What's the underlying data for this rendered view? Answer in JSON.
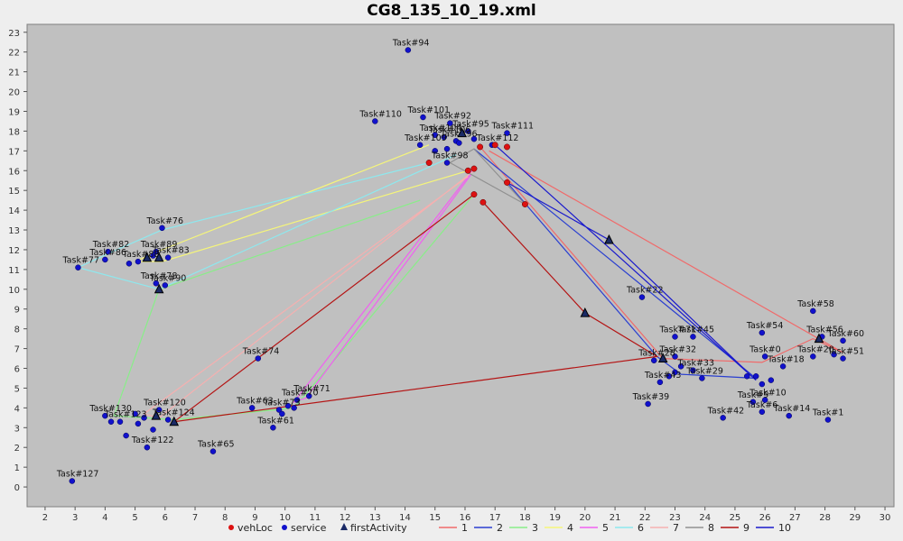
{
  "chart_data": {
    "type": "scatter",
    "title": "CG8_135_10_19.xml",
    "xlabel": "",
    "ylabel": "",
    "xlim": [
      1.4,
      30.3
    ],
    "ylim": [
      -1.0,
      23.4
    ],
    "xticks": [
      2,
      3,
      4,
      5,
      6,
      7,
      8,
      9,
      10,
      11,
      12,
      13,
      14,
      15,
      16,
      17,
      18,
      19,
      20,
      21,
      22,
      23,
      24,
      25,
      26,
      27,
      28,
      29,
      30
    ],
    "yticks": [
      0,
      1,
      2,
      3,
      4,
      5,
      6,
      7,
      8,
      9,
      10,
      11,
      12,
      13,
      14,
      15,
      16,
      17,
      18,
      19,
      20,
      21,
      22,
      23
    ],
    "grid": false,
    "legend_position": "bottom",
    "legend": [
      {
        "label": "vehLoc",
        "kind": "circle",
        "color": "#dd1111"
      },
      {
        "label": "service",
        "kind": "circle",
        "color": "#1111cc"
      },
      {
        "label": "firstActivity",
        "kind": "triangle",
        "color": "#1a2a66"
      },
      {
        "label": "1",
        "kind": "line",
        "color": "#f06a6a"
      },
      {
        "label": "2",
        "kind": "line",
        "color": "#2a3fd0"
      },
      {
        "label": "3",
        "kind": "line",
        "color": "#88ee88"
      },
      {
        "label": "4",
        "kind": "line",
        "color": "#f5f57a"
      },
      {
        "label": "5",
        "kind": "line",
        "color": "#f060f0"
      },
      {
        "label": "6",
        "kind": "line",
        "color": "#8ee8ee"
      },
      {
        "label": "7",
        "kind": "line",
        "color": "#f5b0b0"
      },
      {
        "label": "8",
        "kind": "line",
        "color": "#909090"
      },
      {
        "label": "9",
        "kind": "line",
        "color": "#b41414"
      },
      {
        "label": "10",
        "kind": "line",
        "color": "#1a1acc"
      }
    ],
    "vehLoc": [
      [
        14.8,
        16.4
      ],
      [
        16.1,
        16.0
      ],
      [
        16.3,
        16.1
      ],
      [
        16.5,
        17.2
      ],
      [
        17.0,
        17.3
      ],
      [
        17.4,
        17.2
      ],
      [
        17.4,
        15.4
      ],
      [
        18.0,
        14.3
      ],
      [
        16.3,
        14.8
      ],
      [
        16.6,
        14.4
      ]
    ],
    "firstActivity": [
      [
        5.8,
        10.0
      ],
      [
        6.3,
        3.3
      ],
      [
        5.7,
        3.6
      ],
      [
        20.8,
        12.5
      ],
      [
        20.0,
        8.8
      ],
      [
        27.8,
        7.5
      ],
      [
        5.8,
        11.6
      ],
      [
        5.4,
        11.6
      ],
      [
        15.9,
        17.9
      ],
      [
        22.6,
        6.5
      ]
    ],
    "service": [
      {
        "label": "Task#94",
        "x": 14.1,
        "y": 22.1
      },
      {
        "label": "Task#110",
        "x": 13.0,
        "y": 18.5
      },
      {
        "label": "Task#101",
        "x": 14.6,
        "y": 18.7
      },
      {
        "label": "Task#92",
        "x": 15.5,
        "y": 18.4
      },
      {
        "label": "Task#111",
        "x": 17.4,
        "y": 17.9
      },
      {
        "label": "Task#104",
        "x": 15.0,
        "y": 17.8
      },
      {
        "label": "Task#112",
        "x": 16.9,
        "y": 17.3
      },
      {
        "label": "Task#106",
        "x": 15.3,
        "y": 17.7
      },
      {
        "label": "Task#95",
        "x": 16.1,
        "y": 18.0
      },
      {
        "label": "Task#96",
        "x": 15.7,
        "y": 17.5
      },
      {
        "label": "Task#109",
        "x": 14.5,
        "y": 17.3
      },
      {
        "label": "Task#98",
        "x": 15.4,
        "y": 16.4
      },
      {
        "x": 15.0,
        "y": 17.0
      },
      {
        "x": 15.4,
        "y": 17.1
      },
      {
        "x": 15.8,
        "y": 17.4
      },
      {
        "x": 16.3,
        "y": 17.6
      },
      {
        "label": "Task#76",
        "x": 5.9,
        "y": 13.1
      },
      {
        "label": "Task#82",
        "x": 4.1,
        "y": 11.9
      },
      {
        "label": "Task#89",
        "x": 5.7,
        "y": 11.9
      },
      {
        "label": "Task#86",
        "x": 4.0,
        "y": 11.5
      },
      {
        "label": "Task#83",
        "x": 6.1,
        "y": 11.6
      },
      {
        "label": "Task#77",
        "x": 3.1,
        "y": 11.1
      },
      {
        "label": "Task#88",
        "x": 5.1,
        "y": 11.4
      },
      {
        "x": 5.6,
        "y": 11.7
      },
      {
        "x": 4.8,
        "y": 11.3
      },
      {
        "label": "Task#78",
        "x": 5.7,
        "y": 10.3
      },
      {
        "label": "Task#90",
        "x": 6.0,
        "y": 10.2
      },
      {
        "label": "Task#74",
        "x": 9.1,
        "y": 6.5
      },
      {
        "label": "Task#71",
        "x": 10.8,
        "y": 4.6
      },
      {
        "label": "Task#70",
        "x": 10.4,
        "y": 4.4
      },
      {
        "label": "Task#73",
        "x": 9.8,
        "y": 3.9
      },
      {
        "label": "Task#63",
        "x": 8.9,
        "y": 4.0
      },
      {
        "label": "Task#61",
        "x": 9.6,
        "y": 3.0
      },
      {
        "x": 10.1,
        "y": 4.1
      },
      {
        "x": 9.9,
        "y": 3.7
      },
      {
        "x": 10.3,
        "y": 4.0
      },
      {
        "label": "Task#130",
        "x": 4.0,
        "y": 3.6
      },
      {
        "label": "Task#120",
        "x": 5.8,
        "y": 3.9
      },
      {
        "label": "Task#124",
        "x": 6.1,
        "y": 3.4
      },
      {
        "label": "Task#123",
        "x": 4.5,
        "y": 3.3
      },
      {
        "label": "Task#122",
        "x": 5.4,
        "y": 2.0
      },
      {
        "label": "Task#127",
        "x": 2.9,
        "y": 0.3
      },
      {
        "label": "Task#65",
        "x": 7.6,
        "y": 1.8
      },
      {
        "x": 4.7,
        "y": 2.6
      },
      {
        "x": 5.1,
        "y": 3.2
      },
      {
        "x": 5.6,
        "y": 2.9
      },
      {
        "x": 4.2,
        "y": 3.3
      },
      {
        "x": 5.0,
        "y": 3.7
      },
      {
        "x": 5.3,
        "y": 3.5
      },
      {
        "label": "Task#58",
        "x": 27.6,
        "y": 8.9
      },
      {
        "label": "Task#54",
        "x": 25.9,
        "y": 7.8
      },
      {
        "label": "Task#56",
        "x": 27.9,
        "y": 7.6
      },
      {
        "label": "Task#60",
        "x": 28.6,
        "y": 7.4
      },
      {
        "label": "Task#51",
        "x": 28.6,
        "y": 6.5
      },
      {
        "label": "Task#0",
        "x": 26.0,
        "y": 6.6
      },
      {
        "label": "Task#18",
        "x": 26.6,
        "y": 6.1
      },
      {
        "label": "Task#20",
        "x": 27.6,
        "y": 6.6
      },
      {
        "label": "Task#10",
        "x": 26.0,
        "y": 4.4
      },
      {
        "label": "Task#9",
        "x": 25.6,
        "y": 4.3
      },
      {
        "label": "Task#6",
        "x": 25.9,
        "y": 3.8
      },
      {
        "label": "Task#14",
        "x": 26.8,
        "y": 3.6
      },
      {
        "label": "Task#1",
        "x": 28.1,
        "y": 3.4
      },
      {
        "x": 25.7,
        "y": 5.6
      },
      {
        "x": 25.9,
        "y": 5.2
      },
      {
        "x": 26.2,
        "y": 5.4
      },
      {
        "x": 28.3,
        "y": 6.7
      },
      {
        "label": "Task#22",
        "x": 21.9,
        "y": 9.6
      },
      {
        "label": "Task#45",
        "x": 23.6,
        "y": 7.6
      },
      {
        "label": "Task#71",
        "x": 23.0,
        "y": 7.6
      },
      {
        "label": "Task#32",
        "x": 23.0,
        "y": 6.6
      },
      {
        "label": "Task#28",
        "x": 22.3,
        "y": 6.4
      },
      {
        "label": "Task#33",
        "x": 23.6,
        "y": 5.9
      },
      {
        "label": "Task#29",
        "x": 23.9,
        "y": 5.5
      },
      {
        "label": "Task#43",
        "x": 22.5,
        "y": 5.3
      },
      {
        "label": "Task#39",
        "x": 22.1,
        "y": 4.2
      },
      {
        "label": "Task#42",
        "x": 24.6,
        "y": 3.5
      },
      {
        "x": 22.8,
        "y": 5.6
      },
      {
        "x": 23.2,
        "y": 6.1
      },
      {
        "x": 23.0,
        "y": 5.8
      },
      {
        "x": 25.4,
        "y": 5.6
      }
    ],
    "series": [
      {
        "name": "1",
        "color": "#f06a6a",
        "points": [
          [
            16.5,
            17.2
          ],
          [
            22.6,
            6.5
          ],
          [
            25.9,
            6.3
          ],
          [
            27.6,
            7.5
          ],
          [
            28.6,
            6.8
          ],
          [
            16.8,
            17.0
          ]
        ]
      },
      {
        "name": "2",
        "color": "#2a3fd0",
        "points": [
          [
            17.4,
            15.4
          ],
          [
            22.4,
            6.6
          ],
          [
            23.2,
            5.7
          ],
          [
            25.7,
            5.5
          ],
          [
            16.3,
            17.1
          ]
        ]
      },
      {
        "name": "3",
        "color": "#88ee88",
        "points": [
          [
            16.3,
            14.8
          ],
          [
            10.3,
            4.0
          ],
          [
            6.3,
            3.4
          ],
          [
            4.3,
            3.6
          ],
          [
            5.8,
            10.0
          ],
          [
            14.5,
            14.5
          ]
        ]
      },
      {
        "name": "4",
        "color": "#f5f57a",
        "points": [
          [
            16.1,
            16.0
          ],
          [
            5.9,
            11.4
          ],
          [
            5.0,
            11.4
          ],
          [
            5.9,
            12.0
          ],
          [
            14.8,
            17.3
          ]
        ]
      },
      {
        "name": "5",
        "color": "#f060f0",
        "points": [
          [
            16.3,
            16.1
          ],
          [
            10.3,
            4.3
          ],
          [
            10.7,
            4.5
          ],
          [
            16.2,
            15.8
          ]
        ]
      },
      {
        "name": "6",
        "color": "#8ee8ee",
        "points": [
          [
            14.8,
            16.4
          ],
          [
            5.9,
            13.0
          ],
          [
            4.1,
            11.8
          ],
          [
            3.1,
            11.1
          ],
          [
            5.8,
            10.0
          ],
          [
            15.7,
            16.8
          ]
        ]
      },
      {
        "name": "7",
        "color": "#f5b0b0",
        "points": [
          [
            16.3,
            16.0
          ],
          [
            5.8,
            3.5
          ],
          [
            5.3,
            3.7
          ],
          [
            16.1,
            15.7
          ]
        ]
      },
      {
        "name": "8",
        "color": "#909090",
        "points": [
          [
            18.0,
            14.3
          ],
          [
            16.3,
            17.1
          ],
          [
            15.5,
            16.4
          ],
          [
            18.0,
            14.3
          ]
        ]
      },
      {
        "name": "9",
        "color": "#b41414",
        "points": [
          [
            16.6,
            14.4
          ],
          [
            20.0,
            8.8
          ],
          [
            22.4,
            6.6
          ],
          [
            6.3,
            3.3
          ],
          [
            16.3,
            14.8
          ]
        ]
      },
      {
        "name": "10",
        "color": "#1a1acc",
        "points": [
          [
            17.4,
            15.4
          ],
          [
            20.8,
            12.5
          ],
          [
            25.7,
            5.4
          ],
          [
            17.0,
            17.3
          ]
        ]
      }
    ]
  }
}
